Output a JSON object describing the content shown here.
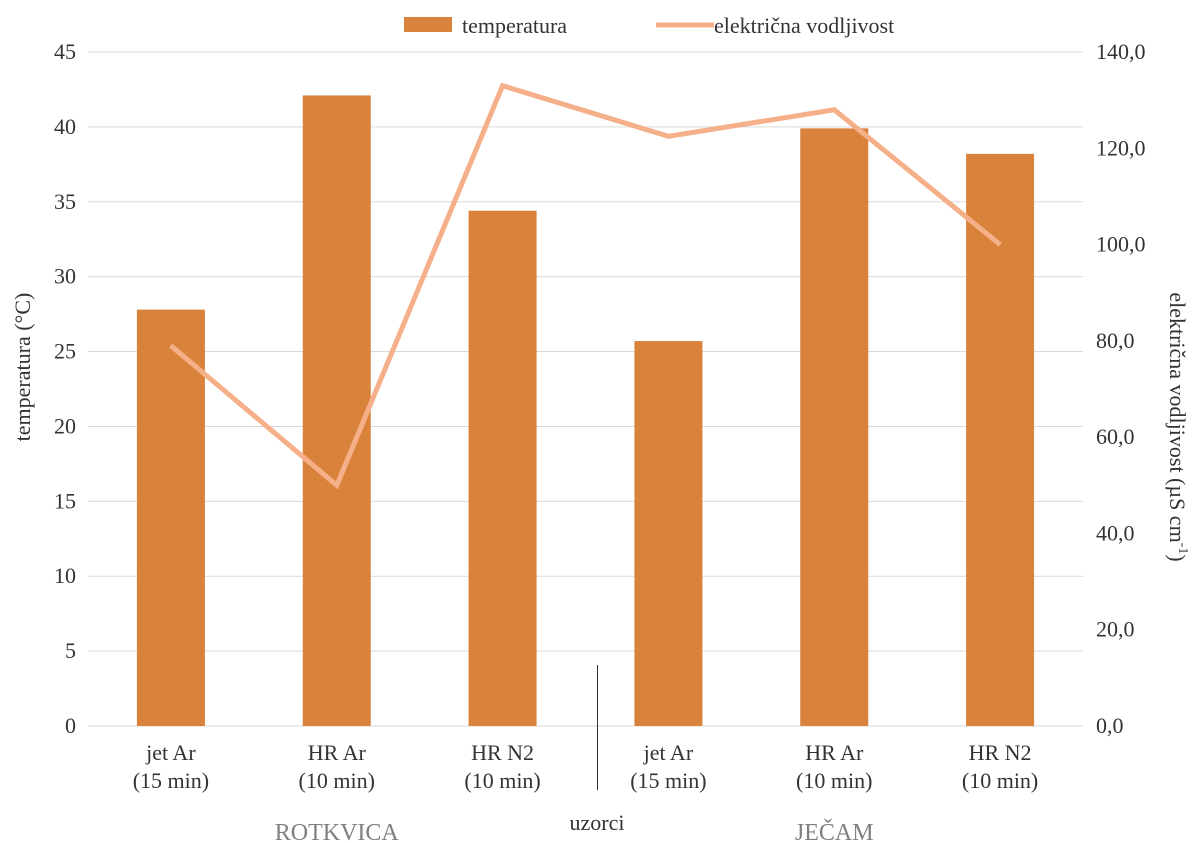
{
  "chart_data": {
    "type": "bar",
    "categories": [
      "jet Ar (15 min)",
      "HR Ar (10 min)",
      "HR N2 (10 min)",
      "jet Ar (15 min)",
      "HR Ar (10 min)",
      "HR N2 (10 min)"
    ],
    "category_lines": [
      [
        "jet Ar",
        "(15 min)"
      ],
      [
        "HR Ar",
        "(10 min)"
      ],
      [
        "HR N2",
        "(10 min)"
      ],
      [
        "jet Ar",
        "(15 min)"
      ],
      [
        "HR Ar",
        "(10 min)"
      ],
      [
        "HR N2",
        "(10 min)"
      ]
    ],
    "groups": [
      {
        "label": "ROTKVICA",
        "categories": [
          0,
          1,
          2
        ]
      },
      {
        "label": "JEČAM",
        "categories": [
          3,
          4,
          5
        ]
      }
    ],
    "series": [
      {
        "name": "temperatura",
        "type": "bar",
        "axis": "left",
        "color": "#D9823B",
        "values": [
          27.8,
          42.1,
          34.4,
          25.7,
          39.9,
          38.2
        ]
      },
      {
        "name": "električna vodljivost",
        "type": "line",
        "axis": "right",
        "color": "#F5B08A",
        "values": [
          79.0,
          50.0,
          133.0,
          122.5,
          128.0,
          100.0
        ]
      }
    ],
    "xlabel": "uzorci",
    "ylabel": "temperatura (°C)",
    "ylabel_right": "električna vodljivost (µS cm",
    "ylabel_right_sup": "-1",
    "ylabel_right_end": ")",
    "ylim": [
      0,
      45
    ],
    "ylim_right": [
      0,
      140
    ],
    "yticks": [
      "0",
      "5",
      "10",
      "15",
      "20",
      "25",
      "30",
      "35",
      "40",
      "45"
    ],
    "yticks_right": [
      "0,0",
      "20,0",
      "40,0",
      "60,0",
      "80,0",
      "100,0",
      "120,0",
      "140,0"
    ],
    "grid": true,
    "legend": "top-center"
  }
}
